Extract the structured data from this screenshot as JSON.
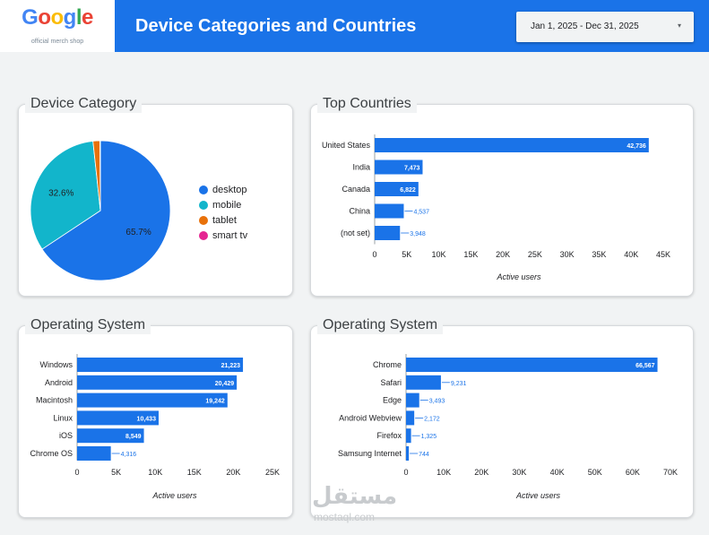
{
  "header": {
    "logo": {
      "letters": [
        {
          "ch": "G",
          "color": "#4285f4"
        },
        {
          "ch": "o",
          "color": "#ea4335"
        },
        {
          "ch": "o",
          "color": "#fbbc05"
        },
        {
          "ch": "g",
          "color": "#4285f4"
        },
        {
          "ch": "l",
          "color": "#34a853"
        },
        {
          "ch": "e",
          "color": "#ea4335"
        }
      ],
      "subtitle": "official merch shop"
    },
    "title": "Device Categories and Countries",
    "date_range": "Jan 1, 2025 - Dec 31, 2025",
    "date_caret": "▾"
  },
  "colors": {
    "bar": "#1a73e8",
    "header": "#1a73e8"
  },
  "watermark": {
    "text": "مستقل",
    "sub": "mostaql.com"
  },
  "chart_data": [
    {
      "type": "pie",
      "title": "Device Category",
      "categories": [
        "desktop",
        "mobile",
        "tablet",
        "smart tv"
      ],
      "values": [
        65.7,
        32.6,
        1.6,
        0.1
      ],
      "colors": [
        "#1a73e8",
        "#12b5cb",
        "#e8710a",
        "#e52592"
      ],
      "labels": [
        "65.7%",
        "32.6%",
        "",
        ""
      ]
    },
    {
      "type": "bar",
      "orientation": "horizontal",
      "title": "Top Countries",
      "categories": [
        "United States",
        "India",
        "Canada",
        "China",
        "(not set)"
      ],
      "values": [
        42736,
        7473,
        6822,
        4537,
        3948
      ],
      "value_labels": [
        "42,736",
        "7,473",
        "6,822",
        "4,537",
        "3,948"
      ],
      "xlim": [
        0,
        45000
      ],
      "ticks": [
        "0",
        "5K",
        "10K",
        "15K",
        "20K",
        "25K",
        "30K",
        "35K",
        "40K",
        "45K"
      ],
      "xlabel": "Active users"
    },
    {
      "type": "bar",
      "orientation": "horizontal",
      "title": "Operating System",
      "categories": [
        "Windows",
        "Android",
        "Macintosh",
        "Linux",
        "iOS",
        "Chrome OS"
      ],
      "values": [
        21223,
        20429,
        19242,
        10433,
        8549,
        4316
      ],
      "value_labels": [
        "21,223",
        "20,429",
        "19,242",
        "10,433",
        "8,549",
        "4,316"
      ],
      "xlim": [
        0,
        25000
      ],
      "ticks": [
        "0",
        "5K",
        "10K",
        "15K",
        "20K",
        "25K"
      ],
      "xlabel": "Active users"
    },
    {
      "type": "bar",
      "orientation": "horizontal",
      "title": "Operating System",
      "categories": [
        "Chrome",
        "Safari",
        "Edge",
        "Android Webview",
        "Firefox",
        "Samsung Internet"
      ],
      "values": [
        66567,
        9231,
        3493,
        2172,
        1325,
        744
      ],
      "value_labels": [
        "66,567",
        "9,231",
        "3,493",
        "2,172",
        "1,325",
        "744"
      ],
      "xlim": [
        0,
        70000
      ],
      "ticks": [
        "0",
        "10K",
        "20K",
        "30K",
        "40K",
        "50K",
        "60K",
        "70K"
      ],
      "xlabel": "Active users"
    }
  ]
}
